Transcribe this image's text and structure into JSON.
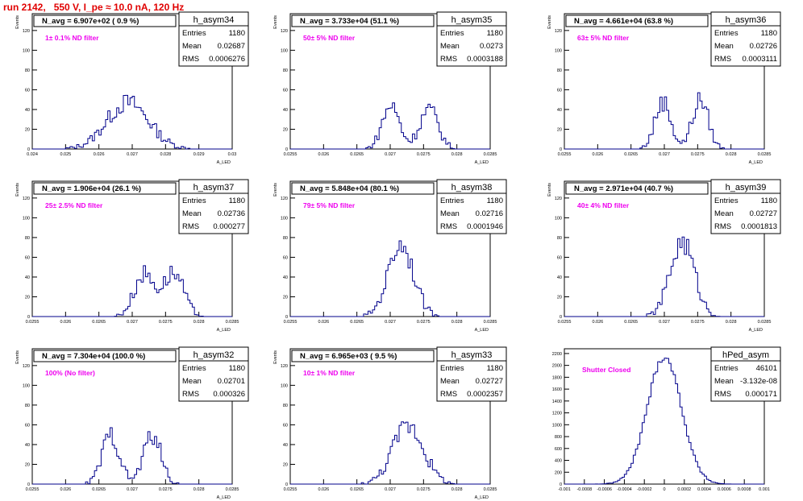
{
  "header": {
    "text": "run 2142,   550 V, I_pe ≈ 10.0 nA, 120 Hz",
    "color": "#e00000"
  },
  "colors": {
    "hist": "#00008b",
    "annotation": "#ee00ee",
    "text": "#000000"
  },
  "chart_data": [
    {
      "type": "histogram",
      "name": "h_asym34",
      "ylabel": "Events",
      "xlabel": "A_LED",
      "navg": "N_avg = 6.907e+02 ( 0.9 %)",
      "note": "1± 0.1% ND filter",
      "stats": [
        [
          "Entries",
          "1180"
        ],
        [
          "Mean",
          "0.02687"
        ],
        [
          "RMS",
          "0.0006276"
        ]
      ],
      "xlim": [
        0.024,
        0.03
      ],
      "ylim": [
        0,
        137
      ],
      "xticks": [
        "0.024",
        "0.025",
        "0.026",
        "0.027",
        "0.028",
        "0.029",
        "0.03"
      ],
      "yticks": [
        "0",
        "20",
        "40",
        "60",
        "80",
        "100",
        "120"
      ],
      "dist": [
        {
          "mu": 0.02687,
          "sigma": 0.00063,
          "amp": 47
        }
      ]
    },
    {
      "type": "histogram",
      "name": "h_asym35",
      "ylabel": "Events",
      "xlabel": "A_LED",
      "navg": "N_avg = 3.733e+04 (51.1 %)",
      "note": "50± 5% ND filter",
      "stats": [
        [
          "Entries",
          "1180"
        ],
        [
          "Mean",
          "0.0273"
        ],
        [
          "RMS",
          "0.0003188"
        ]
      ],
      "xlim": [
        0.0255,
        0.0285
      ],
      "ylim": [
        0,
        137
      ],
      "xticks": [
        "0.0255",
        "0.026",
        "0.0265",
        "0.027",
        "0.0275",
        "0.028",
        "0.0285"
      ],
      "yticks": [
        "0",
        "20",
        "40",
        "60",
        "80",
        "100",
        "120"
      ],
      "dist": [
        {
          "mu": 0.02701,
          "sigma": 0.00013,
          "amp": 44
        },
        {
          "mu": 0.02758,
          "sigma": 0.00014,
          "amp": 40
        }
      ]
    },
    {
      "type": "histogram",
      "name": "h_asym36",
      "ylabel": "Events",
      "xlabel": "A_LED",
      "navg": "N_avg = 4.661e+04 (63.8 %)",
      "note": "63± 5% ND filter",
      "stats": [
        [
          "Entries",
          "1180"
        ],
        [
          "Mean",
          "0.02726"
        ],
        [
          "RMS",
          "0.0003111"
        ]
      ],
      "xlim": [
        0.0255,
        0.0285
      ],
      "ylim": [
        0,
        137
      ],
      "xticks": [
        "0.0255",
        "0.026",
        "0.0265",
        "0.027",
        "0.0275",
        "0.028",
        "0.0285"
      ],
      "yticks": [
        "0",
        "20",
        "40",
        "60",
        "80",
        "100",
        "120"
      ],
      "dist": [
        {
          "mu": 0.02698,
          "sigma": 0.00012,
          "amp": 48
        },
        {
          "mu": 0.02754,
          "sigma": 0.00012,
          "amp": 50
        }
      ]
    },
    {
      "type": "histogram",
      "name": "h_asym37",
      "ylabel": "Events",
      "xlabel": "A_LED",
      "navg": "N_avg = 1.906e+04 (26.1 %)",
      "note": "25± 2.5% ND filter",
      "stats": [
        [
          "Entries",
          "1180"
        ],
        [
          "Mean",
          "0.02736"
        ],
        [
          "RMS",
          "0.000277"
        ]
      ],
      "xlim": [
        0.0255,
        0.0285
      ],
      "ylim": [
        0,
        137
      ],
      "xticks": [
        "0.0255",
        "0.026",
        "0.0265",
        "0.027",
        "0.0275",
        "0.028",
        "0.0285"
      ],
      "yticks": [
        "0",
        "20",
        "40",
        "60",
        "80",
        "100",
        "120"
      ],
      "dist": [
        {
          "mu": 0.02718,
          "sigma": 0.00015,
          "amp": 43
        },
        {
          "mu": 0.02762,
          "sigma": 0.00015,
          "amp": 44
        }
      ]
    },
    {
      "type": "histogram",
      "name": "h_asym38",
      "ylabel": "Events",
      "xlabel": "A_LED",
      "navg": "N_avg = 5.848e+04 (80.1 %)",
      "note": "79± 5% ND filter",
      "stats": [
        [
          "Entries",
          "1180"
        ],
        [
          "Mean",
          "0.02716"
        ],
        [
          "RMS",
          "0.0001946"
        ]
      ],
      "xlim": [
        0.0255,
        0.0285
      ],
      "ylim": [
        0,
        137
      ],
      "xticks": [
        "0.0255",
        "0.026",
        "0.0265",
        "0.027",
        "0.0275",
        "0.028",
        "0.0285"
      ],
      "yticks": [
        "0",
        "20",
        "40",
        "60",
        "80",
        "100",
        "120"
      ],
      "dist": [
        {
          "mu": 0.02716,
          "sigma": 0.00019,
          "amp": 74
        }
      ]
    },
    {
      "type": "histogram",
      "name": "h_asym39",
      "ylabel": "Events",
      "xlabel": "A_LED",
      "navg": "N_avg = 2.971e+04 (40.7 %)",
      "note": "40± 4% ND filter",
      "stats": [
        [
          "Entries",
          "1180"
        ],
        [
          "Mean",
          "0.02727"
        ],
        [
          "RMS",
          "0.0001813"
        ]
      ],
      "xlim": [
        0.0255,
        0.0285
      ],
      "ylim": [
        0,
        137
      ],
      "xticks": [
        "0.0255",
        "0.026",
        "0.0265",
        "0.027",
        "0.0275",
        "0.028",
        "0.0285"
      ],
      "yticks": [
        "0",
        "20",
        "40",
        "60",
        "80",
        "100",
        "120"
      ],
      "dist": [
        {
          "mu": 0.02727,
          "sigma": 0.00018,
          "amp": 76
        }
      ]
    },
    {
      "type": "histogram",
      "name": "h_asym32",
      "ylabel": "Events",
      "xlabel": "A_LED",
      "navg": "N_avg = 7.304e+04 (100.0 %)",
      "note": "100% (No filter)",
      "stats": [
        [
          "Entries",
          "1180"
        ],
        [
          "Mean",
          "0.02701"
        ],
        [
          "RMS",
          "0.000326"
        ]
      ],
      "xlim": [
        0.0255,
        0.0285
      ],
      "ylim": [
        0,
        137
      ],
      "xticks": [
        "0.0255",
        "0.026",
        "0.0265",
        "0.027",
        "0.0275",
        "0.028",
        "0.0285"
      ],
      "yticks": [
        "0",
        "20",
        "40",
        "60",
        "80",
        "100",
        "120"
      ],
      "dist": [
        {
          "mu": 0.02668,
          "sigma": 0.00013,
          "amp": 50
        },
        {
          "mu": 0.0273,
          "sigma": 0.00013,
          "amp": 50
        }
      ]
    },
    {
      "type": "histogram",
      "name": "h_asym33",
      "ylabel": "Events",
      "xlabel": "A_LED",
      "navg": "N_avg = 6.965e+03 ( 9.5 %)",
      "note": "10± 1% ND filter",
      "stats": [
        [
          "Entries",
          "1180"
        ],
        [
          "Mean",
          "0.02727"
        ],
        [
          "RMS",
          "0.0002357"
        ]
      ],
      "xlim": [
        0.0255,
        0.0285
      ],
      "ylim": [
        0,
        137
      ],
      "xticks": [
        "0.0255",
        "0.026",
        "0.0265",
        "0.027",
        "0.0275",
        "0.028",
        "0.0285"
      ],
      "yticks": [
        "0",
        "20",
        "40",
        "60",
        "80",
        "100",
        "120"
      ],
      "dist": [
        {
          "mu": 0.02727,
          "sigma": 0.00023,
          "amp": 60
        }
      ]
    },
    {
      "type": "histogram",
      "name": "hPed_asym",
      "ylabel": "",
      "xlabel": "",
      "navg": "",
      "note": "Shutter Closed",
      "stats": [
        [
          "Entries",
          "46101"
        ],
        [
          "Mean",
          "-3.132e-08"
        ],
        [
          "RMS",
          "0.000171"
        ]
      ],
      "xlim": [
        -0.001,
        0.001
      ],
      "ylim": [
        0,
        2280
      ],
      "xticks": [
        "-0.001",
        "-0.0008",
        "-0.0006",
        "-0.0004",
        "-0.0002",
        "0",
        "0.0002",
        "0.0004",
        "0.0006",
        "0.0008",
        "0.001"
      ],
      "yticks": [
        "0",
        "200",
        "400",
        "600",
        "800",
        "1000",
        "1200",
        "1400",
        "1600",
        "1800",
        "2000",
        "2200"
      ],
      "dist": [
        {
          "mu": 0.0,
          "sigma": 0.000171,
          "amp": 2150
        }
      ]
    }
  ]
}
